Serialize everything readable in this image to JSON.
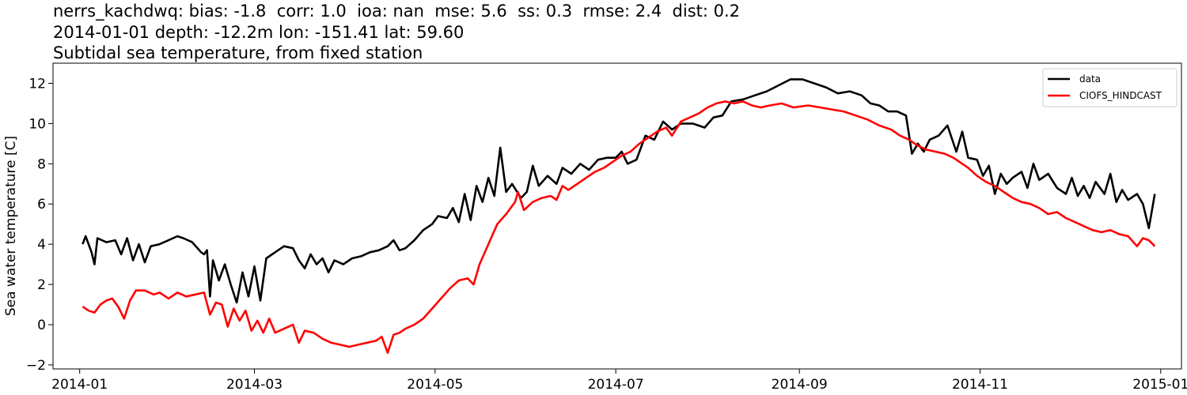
{
  "titles": {
    "line1": "nerrs_kachdwq: bias: -1.8  corr: 1.0  ioa: nan  mse: 5.6  ss: 0.3  rmse: 2.4  dist: 0.2",
    "line2": "2014-01-01 depth: -12.2m lon: -151.41 lat: 59.60",
    "line3": "Subtidal sea temperature, from fixed station"
  },
  "chart_data": {
    "type": "line",
    "title": "nerrs_kachdwq: bias: -1.8  corr: 1.0  ioa: nan  mse: 5.6  ss: 0.3  rmse: 2.4  dist: 0.2\n2014-01-01 depth: -12.2m lon: -151.41 lat: 59.60\nSubtidal sea temperature, from fixed station",
    "xlabel": "",
    "ylabel": "Sea water temperature [C]",
    "xlim": [
      "2013-12-23",
      "2015-01-08"
    ],
    "ylim": [
      -2.2,
      13.0
    ],
    "x_ticks": [
      "2014-01",
      "2014-03",
      "2014-05",
      "2014-07",
      "2014-09",
      "2014-11",
      "2015-01"
    ],
    "y_ticks": [
      -2,
      0,
      2,
      4,
      6,
      8,
      10,
      12
    ],
    "grid": false,
    "legend_position": "top-right",
    "series": [
      {
        "name": "data",
        "color": "#000000",
        "points": [
          [
            "2014-01-02",
            4.0
          ],
          [
            "2014-01-03",
            4.4
          ],
          [
            "2014-01-05",
            3.6
          ],
          [
            "2014-01-06",
            3.0
          ],
          [
            "2014-01-07",
            4.3
          ],
          [
            "2014-01-10",
            4.1
          ],
          [
            "2014-01-13",
            4.2
          ],
          [
            "2014-01-15",
            3.5
          ],
          [
            "2014-01-17",
            4.3
          ],
          [
            "2014-01-19",
            3.2
          ],
          [
            "2014-01-21",
            4.0
          ],
          [
            "2014-01-23",
            3.1
          ],
          [
            "2014-01-25",
            3.9
          ],
          [
            "2014-01-28",
            4.0
          ],
          [
            "2014-01-31",
            4.2
          ],
          [
            "2014-02-03",
            4.4
          ],
          [
            "2014-02-05",
            4.3
          ],
          [
            "2014-02-08",
            4.1
          ],
          [
            "2014-02-11",
            3.6
          ],
          [
            "2014-02-12",
            3.5
          ],
          [
            "2014-02-13",
            3.7
          ],
          [
            "2014-02-14",
            1.4
          ],
          [
            "2014-02-15",
            3.2
          ],
          [
            "2014-02-17",
            2.2
          ],
          [
            "2014-02-19",
            3.0
          ],
          [
            "2014-02-21",
            2.0
          ],
          [
            "2014-02-23",
            1.1
          ],
          [
            "2014-02-25",
            2.6
          ],
          [
            "2014-02-27",
            1.4
          ],
          [
            "2014-03-01",
            2.9
          ],
          [
            "2014-03-03",
            1.2
          ],
          [
            "2014-03-05",
            3.3
          ],
          [
            "2014-03-08",
            3.6
          ],
          [
            "2014-03-11",
            3.9
          ],
          [
            "2014-03-14",
            3.8
          ],
          [
            "2014-03-16",
            3.2
          ],
          [
            "2014-03-18",
            2.8
          ],
          [
            "2014-03-20",
            3.5
          ],
          [
            "2014-03-22",
            3.0
          ],
          [
            "2014-03-24",
            3.3
          ],
          [
            "2014-03-26",
            2.6
          ],
          [
            "2014-03-28",
            3.2
          ],
          [
            "2014-03-31",
            3.0
          ],
          [
            "2014-04-03",
            3.3
          ],
          [
            "2014-04-06",
            3.4
          ],
          [
            "2014-04-09",
            3.6
          ],
          [
            "2014-04-12",
            3.7
          ],
          [
            "2014-04-15",
            3.9
          ],
          [
            "2014-04-17",
            4.2
          ],
          [
            "2014-04-19",
            3.7
          ],
          [
            "2014-04-21",
            3.8
          ],
          [
            "2014-04-24",
            4.2
          ],
          [
            "2014-04-27",
            4.7
          ],
          [
            "2014-04-30",
            5.0
          ],
          [
            "2014-05-02",
            5.4
          ],
          [
            "2014-05-05",
            5.3
          ],
          [
            "2014-05-07",
            5.8
          ],
          [
            "2014-05-09",
            5.1
          ],
          [
            "2014-05-11",
            6.5
          ],
          [
            "2014-05-13",
            5.2
          ],
          [
            "2014-05-15",
            6.9
          ],
          [
            "2014-05-17",
            6.1
          ],
          [
            "2014-05-19",
            7.3
          ],
          [
            "2014-05-21",
            6.4
          ],
          [
            "2014-05-23",
            8.8
          ],
          [
            "2014-05-25",
            6.6
          ],
          [
            "2014-05-27",
            7.0
          ],
          [
            "2014-05-30",
            6.3
          ],
          [
            "2014-06-01",
            6.6
          ],
          [
            "2014-06-03",
            7.9
          ],
          [
            "2014-06-05",
            6.9
          ],
          [
            "2014-06-08",
            7.4
          ],
          [
            "2014-06-11",
            7.0
          ],
          [
            "2014-06-13",
            7.8
          ],
          [
            "2014-06-16",
            7.5
          ],
          [
            "2014-06-19",
            8.0
          ],
          [
            "2014-06-22",
            7.7
          ],
          [
            "2014-06-25",
            8.2
          ],
          [
            "2014-06-28",
            8.3
          ],
          [
            "2014-07-01",
            8.3
          ],
          [
            "2014-07-03",
            8.6
          ],
          [
            "2014-07-05",
            8.0
          ],
          [
            "2014-07-08",
            8.2
          ],
          [
            "2014-07-11",
            9.4
          ],
          [
            "2014-07-14",
            9.2
          ],
          [
            "2014-07-17",
            10.1
          ],
          [
            "2014-07-20",
            9.7
          ],
          [
            "2014-07-23",
            10.0
          ],
          [
            "2014-07-27",
            10.0
          ],
          [
            "2014-07-31",
            9.8
          ],
          [
            "2014-08-03",
            10.3
          ],
          [
            "2014-08-06",
            10.4
          ],
          [
            "2014-08-09",
            11.1
          ],
          [
            "2014-08-13",
            11.2
          ],
          [
            "2014-08-17",
            11.4
          ],
          [
            "2014-08-21",
            11.6
          ],
          [
            "2014-08-25",
            11.9
          ],
          [
            "2014-08-29",
            12.2
          ],
          [
            "2014-09-02",
            12.2
          ],
          [
            "2014-09-06",
            12.0
          ],
          [
            "2014-09-10",
            11.8
          ],
          [
            "2014-09-14",
            11.5
          ],
          [
            "2014-09-18",
            11.6
          ],
          [
            "2014-09-22",
            11.4
          ],
          [
            "2014-09-25",
            11.0
          ],
          [
            "2014-09-28",
            10.9
          ],
          [
            "2014-10-01",
            10.6
          ],
          [
            "2014-10-04",
            10.6
          ],
          [
            "2014-10-07",
            10.4
          ],
          [
            "2014-10-09",
            8.5
          ],
          [
            "2014-10-11",
            9.0
          ],
          [
            "2014-10-13",
            8.6
          ],
          [
            "2014-10-15",
            9.2
          ],
          [
            "2014-10-18",
            9.4
          ],
          [
            "2014-10-21",
            9.9
          ],
          [
            "2014-10-24",
            8.6
          ],
          [
            "2014-10-26",
            9.6
          ],
          [
            "2014-10-28",
            8.3
          ],
          [
            "2014-10-31",
            8.2
          ],
          [
            "2014-11-02",
            7.4
          ],
          [
            "2014-11-04",
            7.9
          ],
          [
            "2014-11-06",
            6.5
          ],
          [
            "2014-11-08",
            7.5
          ],
          [
            "2014-11-10",
            7.0
          ],
          [
            "2014-11-12",
            7.3
          ],
          [
            "2014-11-15",
            7.6
          ],
          [
            "2014-11-17",
            6.8
          ],
          [
            "2014-11-19",
            8.0
          ],
          [
            "2014-11-21",
            7.2
          ],
          [
            "2014-11-24",
            7.5
          ],
          [
            "2014-11-27",
            6.8
          ],
          [
            "2014-11-30",
            6.5
          ],
          [
            "2014-12-02",
            7.3
          ],
          [
            "2014-12-04",
            6.4
          ],
          [
            "2014-12-06",
            6.9
          ],
          [
            "2014-12-08",
            6.3
          ],
          [
            "2014-12-10",
            7.1
          ],
          [
            "2014-12-13",
            6.5
          ],
          [
            "2014-12-15",
            7.5
          ],
          [
            "2014-12-17",
            6.1
          ],
          [
            "2014-12-19",
            6.7
          ],
          [
            "2014-12-21",
            6.2
          ],
          [
            "2014-12-24",
            6.5
          ],
          [
            "2014-12-26",
            6.0
          ],
          [
            "2014-12-28",
            4.8
          ],
          [
            "2014-12-30",
            6.5
          ]
        ]
      },
      {
        "name": "CIOFS_HINDCAST",
        "color": "#ff0000",
        "points": [
          [
            "2014-01-02",
            0.9
          ],
          [
            "2014-01-04",
            0.7
          ],
          [
            "2014-01-06",
            0.6
          ],
          [
            "2014-01-08",
            1.0
          ],
          [
            "2014-01-10",
            1.2
          ],
          [
            "2014-01-12",
            1.3
          ],
          [
            "2014-01-14",
            0.9
          ],
          [
            "2014-01-16",
            0.3
          ],
          [
            "2014-01-18",
            1.2
          ],
          [
            "2014-01-20",
            1.7
          ],
          [
            "2014-01-23",
            1.7
          ],
          [
            "2014-01-26",
            1.5
          ],
          [
            "2014-01-28",
            1.6
          ],
          [
            "2014-01-31",
            1.3
          ],
          [
            "2014-02-03",
            1.6
          ],
          [
            "2014-02-06",
            1.4
          ],
          [
            "2014-02-09",
            1.5
          ],
          [
            "2014-02-12",
            1.6
          ],
          [
            "2014-02-14",
            0.5
          ],
          [
            "2014-02-16",
            1.1
          ],
          [
            "2014-02-18",
            1.0
          ],
          [
            "2014-02-20",
            -0.1
          ],
          [
            "2014-02-22",
            0.8
          ],
          [
            "2014-02-24",
            0.2
          ],
          [
            "2014-02-26",
            0.7
          ],
          [
            "2014-02-28",
            -0.3
          ],
          [
            "2014-03-02",
            0.2
          ],
          [
            "2014-03-04",
            -0.4
          ],
          [
            "2014-03-06",
            0.3
          ],
          [
            "2014-03-08",
            -0.4
          ],
          [
            "2014-03-11",
            -0.2
          ],
          [
            "2014-03-14",
            0.0
          ],
          [
            "2014-03-16",
            -0.9
          ],
          [
            "2014-03-18",
            -0.3
          ],
          [
            "2014-03-21",
            -0.4
          ],
          [
            "2014-03-24",
            -0.7
          ],
          [
            "2014-03-27",
            -0.9
          ],
          [
            "2014-03-30",
            -1.0
          ],
          [
            "2014-04-02",
            -1.1
          ],
          [
            "2014-04-05",
            -1.0
          ],
          [
            "2014-04-08",
            -0.9
          ],
          [
            "2014-04-11",
            -0.8
          ],
          [
            "2014-04-13",
            -0.6
          ],
          [
            "2014-04-15",
            -1.4
          ],
          [
            "2014-04-17",
            -0.5
          ],
          [
            "2014-04-19",
            -0.4
          ],
          [
            "2014-04-21",
            -0.2
          ],
          [
            "2014-04-24",
            0.0
          ],
          [
            "2014-04-27",
            0.3
          ],
          [
            "2014-04-30",
            0.8
          ],
          [
            "2014-05-03",
            1.3
          ],
          [
            "2014-05-06",
            1.8
          ],
          [
            "2014-05-09",
            2.2
          ],
          [
            "2014-05-12",
            2.3
          ],
          [
            "2014-05-14",
            2.0
          ],
          [
            "2014-05-16",
            3.0
          ],
          [
            "2014-05-19",
            4.0
          ],
          [
            "2014-05-22",
            5.0
          ],
          [
            "2014-05-25",
            5.5
          ],
          [
            "2014-05-28",
            6.1
          ],
          [
            "2014-05-29",
            6.6
          ],
          [
            "2014-05-31",
            5.7
          ],
          [
            "2014-06-03",
            6.1
          ],
          [
            "2014-06-06",
            6.3
          ],
          [
            "2014-06-09",
            6.4
          ],
          [
            "2014-06-11",
            6.2
          ],
          [
            "2014-06-13",
            6.9
          ],
          [
            "2014-06-15",
            6.7
          ],
          [
            "2014-06-18",
            7.0
          ],
          [
            "2014-06-21",
            7.3
          ],
          [
            "2014-06-24",
            7.6
          ],
          [
            "2014-06-27",
            7.8
          ],
          [
            "2014-06-30",
            8.1
          ],
          [
            "2014-07-03",
            8.4
          ],
          [
            "2014-07-06",
            8.6
          ],
          [
            "2014-07-09",
            9.0
          ],
          [
            "2014-07-12",
            9.3
          ],
          [
            "2014-07-15",
            9.6
          ],
          [
            "2014-07-18",
            9.8
          ],
          [
            "2014-07-20",
            9.4
          ],
          [
            "2014-07-23",
            10.1
          ],
          [
            "2014-07-26",
            10.3
          ],
          [
            "2014-07-29",
            10.5
          ],
          [
            "2014-08-01",
            10.8
          ],
          [
            "2014-08-04",
            11.0
          ],
          [
            "2014-08-07",
            11.1
          ],
          [
            "2014-08-10",
            11.0
          ],
          [
            "2014-08-13",
            11.1
          ],
          [
            "2014-08-16",
            10.9
          ],
          [
            "2014-08-19",
            10.8
          ],
          [
            "2014-08-22",
            10.9
          ],
          [
            "2014-08-26",
            11.0
          ],
          [
            "2014-08-30",
            10.8
          ],
          [
            "2014-09-04",
            10.9
          ],
          [
            "2014-09-08",
            10.8
          ],
          [
            "2014-09-12",
            10.7
          ],
          [
            "2014-09-16",
            10.6
          ],
          [
            "2014-09-20",
            10.4
          ],
          [
            "2014-09-24",
            10.2
          ],
          [
            "2014-09-28",
            9.9
          ],
          [
            "2014-10-02",
            9.7
          ],
          [
            "2014-10-05",
            9.4
          ],
          [
            "2014-10-08",
            9.2
          ],
          [
            "2014-10-11",
            8.9
          ],
          [
            "2014-10-14",
            8.7
          ],
          [
            "2014-10-17",
            8.6
          ],
          [
            "2014-10-20",
            8.5
          ],
          [
            "2014-10-23",
            8.3
          ],
          [
            "2014-10-26",
            8.0
          ],
          [
            "2014-10-28",
            7.8
          ],
          [
            "2014-10-31",
            7.4
          ],
          [
            "2014-11-03",
            7.1
          ],
          [
            "2014-11-06",
            6.9
          ],
          [
            "2014-11-09",
            6.6
          ],
          [
            "2014-11-12",
            6.3
          ],
          [
            "2014-11-15",
            6.1
          ],
          [
            "2014-11-18",
            6.0
          ],
          [
            "2014-11-21",
            5.8
          ],
          [
            "2014-11-24",
            5.5
          ],
          [
            "2014-11-27",
            5.6
          ],
          [
            "2014-11-30",
            5.3
          ],
          [
            "2014-12-03",
            5.1
          ],
          [
            "2014-12-06",
            4.9
          ],
          [
            "2014-12-09",
            4.7
          ],
          [
            "2014-12-12",
            4.6
          ],
          [
            "2014-12-15",
            4.7
          ],
          [
            "2014-12-18",
            4.5
          ],
          [
            "2014-12-21",
            4.4
          ],
          [
            "2014-12-24",
            3.9
          ],
          [
            "2014-12-26",
            4.3
          ],
          [
            "2014-12-28",
            4.2
          ],
          [
            "2014-12-30",
            3.9
          ]
        ]
      }
    ]
  }
}
